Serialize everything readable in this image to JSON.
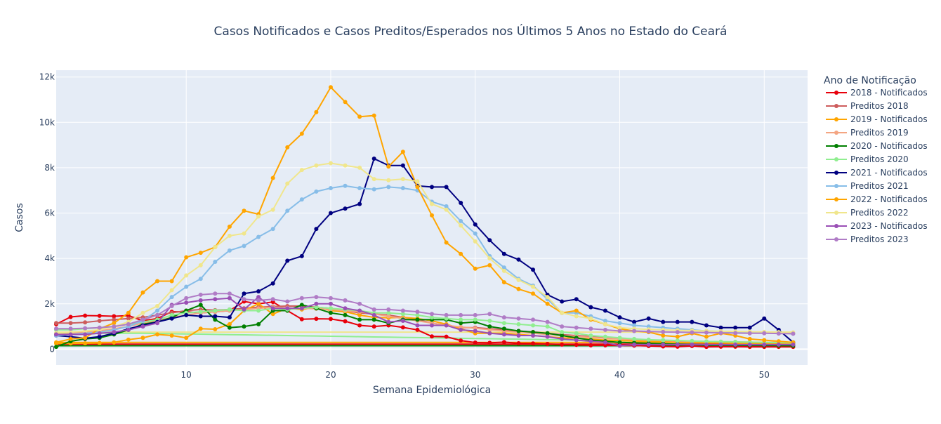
{
  "chart_data": {
    "type": "line",
    "title": "Casos Notificados e Casos Preditos/Esperados nos Últimos 5 Anos no Estado do Ceará",
    "xlabel": "Semana Epidemiológica",
    "ylabel": "Casos",
    "legend_title": "Ano de Notificação",
    "legend_position": "right",
    "grid": true,
    "xlim": [
      1,
      53
    ],
    "ylim": [
      -700,
      12300
    ],
    "x_ticks": [
      10,
      20,
      30,
      40,
      50
    ],
    "x_tick_labels": [
      "10",
      "20",
      "30",
      "40",
      "50"
    ],
    "y_ticks": [
      0,
      2000,
      4000,
      6000,
      8000,
      10000,
      12000
    ],
    "y_tick_labels": [
      "0",
      "2k",
      "4k",
      "6k",
      "8k",
      "10k",
      "12k"
    ],
    "x": [
      1,
      2,
      3,
      4,
      5,
      6,
      7,
      8,
      9,
      10,
      11,
      12,
      13,
      14,
      15,
      16,
      17,
      18,
      19,
      20,
      21,
      22,
      23,
      24,
      25,
      26,
      27,
      28,
      29,
      30,
      31,
      32,
      33,
      34,
      35,
      36,
      37,
      38,
      39,
      40,
      41,
      42,
      43,
      44,
      45,
      46,
      47,
      48,
      49,
      50,
      51,
      52
    ],
    "series": [
      {
        "name": "2018 - Notificados",
        "color": "#e8000b",
        "values": [
          1100,
          1420,
          1480,
          1470,
          1450,
          1480,
          1250,
          1350,
          1650,
          1650,
          1600,
          1650,
          1700,
          2100,
          2000,
          2080,
          1700,
          1320,
          1340,
          1330,
          1230,
          1050,
          1000,
          1050,
          960,
          850,
          560,
          550,
          380,
          290,
          280,
          310,
          260,
          250,
          230,
          200,
          190,
          170,
          170,
          160,
          160,
          140,
          120,
          110,
          140,
          100,
          110,
          110,
          100,
          100,
          100,
          100
        ]
      },
      {
        "name": "Preditos 2018",
        "color": "#cd5c5c",
        "values": [
          1150,
          1150,
          1180,
          1250,
          1300,
          1350,
          1400,
          1500,
          1600,
          1700,
          1750,
          1720,
          1750,
          1800,
          1850,
          1880,
          1900,
          1900,
          1850,
          1800,
          1700,
          1600,
          1550,
          1500,
          1400,
          1300,
          1150,
          1050,
          950,
          950,
          900,
          850,
          800,
          760,
          700,
          640,
          600,
          550,
          500,
          460,
          420,
          380,
          360,
          340,
          320,
          300,
          290,
          280,
          270,
          260,
          250,
          240
        ]
      },
      {
        "name": "2019 - Notificados",
        "color": "#ffa500",
        "values": [
          250,
          250,
          260,
          270,
          300,
          420,
          500,
          650,
          600,
          500,
          900,
          880,
          1100,
          1700,
          2000,
          1550,
          1800,
          1750,
          1850,
          1700,
          1650,
          1500,
          1400,
          1380,
          1400,
          1350,
          1250,
          1100,
          900,
          700,
          700,
          700,
          650,
          600,
          550,
          500,
          480,
          450,
          400,
          380,
          360,
          340,
          320,
          300,
          290,
          280,
          270,
          260,
          250,
          240,
          230,
          220
        ]
      },
      {
        "name": "Preditos 2019",
        "color": "#f4a582",
        "values": [
          700,
          720,
          740,
          800,
          900,
          1000,
          1150,
          1250,
          1400,
          1500,
          1600,
          1650,
          1700,
          1750,
          1800,
          1850,
          1820,
          1800,
          1780,
          1750,
          1700,
          1650,
          1550,
          1450,
          1350,
          1250,
          1150,
          1050,
          980,
          920,
          860,
          800,
          750,
          700,
          650,
          600,
          560,
          520,
          480,
          450,
          420,
          400,
          380,
          360,
          350,
          340,
          330,
          320,
          310,
          300,
          290,
          280
        ]
      },
      {
        "name": "2020 - Notificados",
        "color": "#007f00",
        "values": [
          100,
          350,
          450,
          500,
          650,
          850,
          1100,
          1200,
          1400,
          1700,
          1950,
          1300,
          950,
          1000,
          1100,
          1700,
          1700,
          1950,
          1800,
          1600,
          1500,
          1300,
          1300,
          1150,
          1300,
          1300,
          1300,
          1300,
          1150,
          1200,
          1000,
          900,
          800,
          750,
          700,
          600,
          500,
          400,
          350,
          300,
          280,
          260,
          240,
          220,
          210,
          200,
          190,
          180,
          170,
          170,
          160,
          150
        ]
      },
      {
        "name": "Preditos 2020",
        "color": "#90ee90",
        "values": [
          850,
          850,
          900,
          950,
          1000,
          1100,
          1200,
          1300,
          1500,
          1600,
          1650,
          1700,
          1750,
          1700,
          1700,
          1800,
          1750,
          1800,
          1850,
          1800,
          1750,
          1700,
          1600,
          1600,
          1550,
          1500,
          1400,
          1350,
          1300,
          1300,
          1250,
          1150,
          1100,
          1050,
          1000,
          750,
          700,
          600,
          550,
          500,
          450,
          420,
          400,
          380,
          360,
          340,
          330,
          320,
          310,
          300,
          290,
          280
        ]
      },
      {
        "name": "2021 - Notificados",
        "color": "#000080",
        "values": [
          600,
          550,
          480,
          550,
          700,
          900,
          1050,
          1200,
          1350,
          1500,
          1450,
          1450,
          1400,
          2450,
          2550,
          2900,
          3900,
          4100,
          5300,
          6000,
          6200,
          6400,
          8400,
          8100,
          8100,
          7200,
          7150,
          7150,
          6450,
          5500,
          4800,
          4200,
          3950,
          3500,
          2400,
          2100,
          2200,
          1850,
          1700,
          1400,
          1200,
          1350,
          1200,
          1200,
          1200,
          1050,
          950,
          950,
          950,
          1350,
          850,
          300
        ]
      },
      {
        "name": "Preditos 2021",
        "color": "#87bde8",
        "values": [
          600,
          650,
          700,
          750,
          850,
          1000,
          1250,
          1700,
          2300,
          2750,
          3100,
          3850,
          4350,
          4550,
          4950,
          5300,
          6100,
          6600,
          6950,
          7100,
          7200,
          7100,
          7050,
          7150,
          7100,
          7000,
          6500,
          6300,
          5650,
          5100,
          4100,
          3600,
          3100,
          2800,
          2200,
          1600,
          1600,
          1450,
          1250,
          1150,
          1050,
          1000,
          950,
          900,
          850,
          800,
          780,
          760,
          740,
          720,
          700,
          680
        ]
      },
      {
        "name": "2022 - Notificados",
        "color": "#ffa500",
        "values": [
          300,
          450,
          500,
          900,
          1150,
          1600,
          2500,
          3000,
          3000,
          4050,
          4250,
          4500,
          5400,
          6100,
          5950,
          7550,
          8900,
          9500,
          10450,
          11550,
          10900,
          10250,
          10300,
          8050,
          8700,
          7150,
          5900,
          4700,
          4200,
          3550,
          3700,
          2950,
          2650,
          2450,
          2000,
          1600,
          1700,
          1300,
          1100,
          900,
          800,
          750,
          600,
          550,
          700,
          550,
          700,
          600,
          450,
          400,
          350,
          300
        ]
      },
      {
        "name": "Preditos 2022",
        "color": "#f0e68c",
        "values": [
          700,
          750,
          800,
          850,
          1000,
          1200,
          1600,
          1900,
          2600,
          3250,
          3700,
          4500,
          5000,
          5100,
          5850,
          6150,
          7300,
          7900,
          8100,
          8200,
          8100,
          8000,
          7500,
          7450,
          7500,
          7400,
          6400,
          6150,
          5450,
          4750,
          4000,
          3450,
          3050,
          2750,
          2300,
          1600,
          1450,
          1350,
          1100,
          950,
          900,
          870,
          850,
          830,
          820,
          800,
          790,
          780,
          770,
          760,
          750,
          740
        ]
      },
      {
        "name": "2023 - Notificados",
        "color": "#9a4fb5",
        "values": [
          650,
          650,
          650,
          700,
          750,
          850,
          1000,
          1150,
          1950,
          2050,
          2150,
          2200,
          2250,
          1750,
          2300,
          1800,
          1800,
          1800,
          2000,
          2000,
          1800,
          1700,
          1500,
          1200,
          1250,
          1050,
          1050,
          1050,
          850,
          800,
          700,
          650,
          600,
          600,
          550,
          450,
          400,
          350,
          300,
          150,
          200,
          200,
          200,
          200,
          200,
          200,
          200,
          200,
          200,
          200,
          200,
          200
        ]
      },
      {
        "name": "Preditos 2023",
        "color": "#b07cc6",
        "values": [
          900,
          900,
          920,
          950,
          1000,
          1100,
          1300,
          1500,
          1900,
          2250,
          2400,
          2450,
          2450,
          2200,
          2150,
          2200,
          2100,
          2250,
          2300,
          2250,
          2150,
          2000,
          1750,
          1750,
          1700,
          1650,
          1550,
          1500,
          1500,
          1500,
          1550,
          1400,
          1350,
          1300,
          1200,
          1000,
          950,
          900,
          850,
          800,
          800,
          780,
          760,
          750,
          740,
          730,
          720,
          710,
          700,
          700,
          690,
          680
        ]
      }
    ],
    "baselines": [
      {
        "color": "#e8000b",
        "values": [
          220,
          220,
          220,
          220,
          220,
          220,
          220,
          220,
          220,
          220,
          220,
          220,
          220,
          220,
          220,
          220,
          220,
          220,
          220,
          220,
          220,
          220,
          220,
          220,
          220,
          220,
          220,
          220,
          220,
          220,
          220,
          220,
          220,
          220,
          220,
          220,
          220,
          220,
          220,
          220,
          220,
          220,
          220,
          220,
          220,
          220,
          220,
          220,
          220,
          220,
          220,
          220
        ]
      },
      {
        "color": "#007f00",
        "values": [
          150,
          150,
          150,
          150,
          150,
          150,
          150,
          150,
          150,
          150,
          150,
          150,
          150,
          150,
          150,
          150,
          150,
          150,
          150,
          150,
          150,
          150,
          150,
          150,
          150,
          150,
          150,
          150,
          150,
          150,
          150,
          150,
          150,
          150,
          150,
          150,
          150,
          150,
          150,
          150,
          150,
          150,
          150,
          150,
          150,
          150,
          150,
          150,
          150,
          150,
          150,
          150
        ]
      },
      {
        "color": "#ffa500",
        "values": [
          300,
          300,
          300,
          300,
          300,
          300,
          300,
          300,
          300,
          300,
          300,
          300,
          300,
          300,
          300,
          300,
          300,
          300,
          300,
          300,
          300,
          300,
          300,
          300,
          300,
          300,
          300,
          300,
          300,
          300,
          300,
          300,
          300,
          300,
          300,
          300,
          300,
          300,
          300,
          300,
          300,
          300,
          300,
          300,
          300,
          300,
          300,
          300,
          300,
          300,
          300,
          300
        ]
      },
      {
        "color": "#f0e68c",
        "values": [
          750,
          750,
          750,
          750,
          750,
          750,
          750,
          750,
          750,
          750,
          750,
          750,
          750,
          750,
          750,
          750,
          750,
          750,
          750,
          750,
          750,
          750,
          750,
          750,
          750,
          750,
          750,
          750,
          750,
          750,
          750,
          750,
          750,
          750,
          750,
          750,
          750,
          750,
          750,
          750,
          750,
          750,
          750,
          750,
          750,
          750,
          750,
          750,
          750,
          750,
          750,
          750
        ]
      },
      {
        "color": "#90ee90",
        "values": [
          700,
          700,
          700,
          700,
          700,
          700,
          700,
          690,
          680,
          670,
          660,
          650,
          640,
          630,
          620,
          610,
          600,
          590,
          580,
          570,
          560,
          550,
          540,
          530,
          520,
          510,
          500,
          490,
          480,
          470,
          460,
          450,
          440,
          430,
          420,
          410,
          400,
          390,
          380,
          370,
          360,
          350,
          340,
          330,
          320,
          310,
          300,
          290,
          280,
          270,
          260,
          250
        ]
      }
    ]
  }
}
